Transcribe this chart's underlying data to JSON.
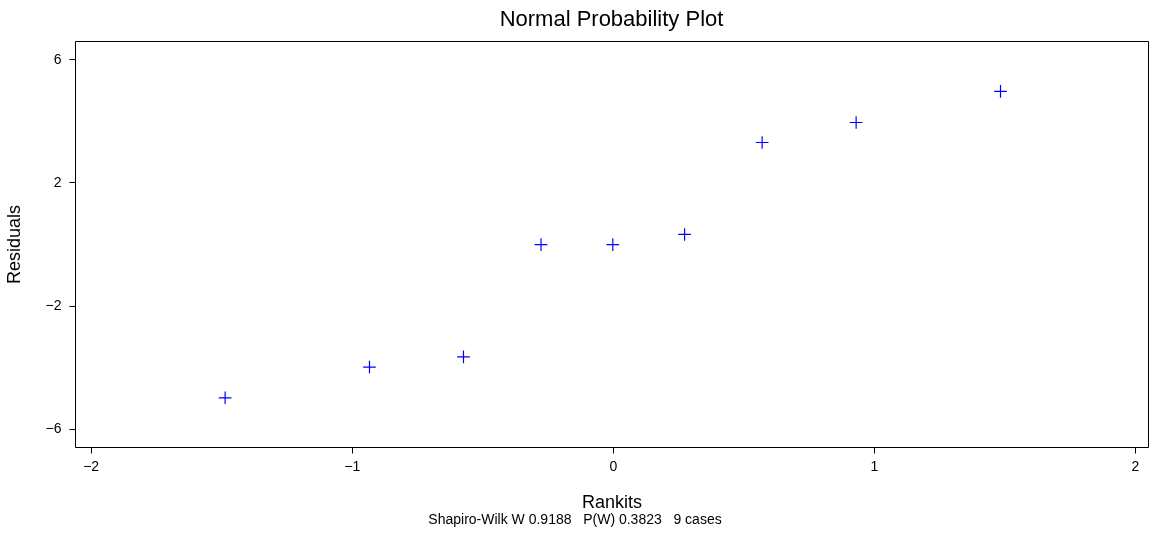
{
  "chart_data": {
    "type": "scatter",
    "title": "Normal Probability Plot",
    "xlabel": "Rankits",
    "ylabel": "Residuals",
    "x": [
      -1.485,
      -0.932,
      -0.572,
      -0.275,
      0,
      0.275,
      0.572,
      0.932,
      1.485
    ],
    "series": [
      {
        "color": "#0000ff",
        "values": [
          -5.0,
          -4.0,
          -3.67,
          -0.02,
          -0.02,
          0.31,
          3.3,
          3.95,
          4.96
        ]
      }
    ],
    "xlim": [
      -2.06,
      2.05
    ],
    "xticks": [
      -2,
      -1,
      0,
      1,
      2
    ],
    "ylim": [
      -6.6,
      6.6
    ],
    "yticks": [
      -6,
      -2,
      2,
      6
    ],
    "grid": false,
    "marker": "cross",
    "annotations": [
      "Shapiro-Wilk W 0.9188   P(W) 0.3823   9 cases"
    ]
  }
}
